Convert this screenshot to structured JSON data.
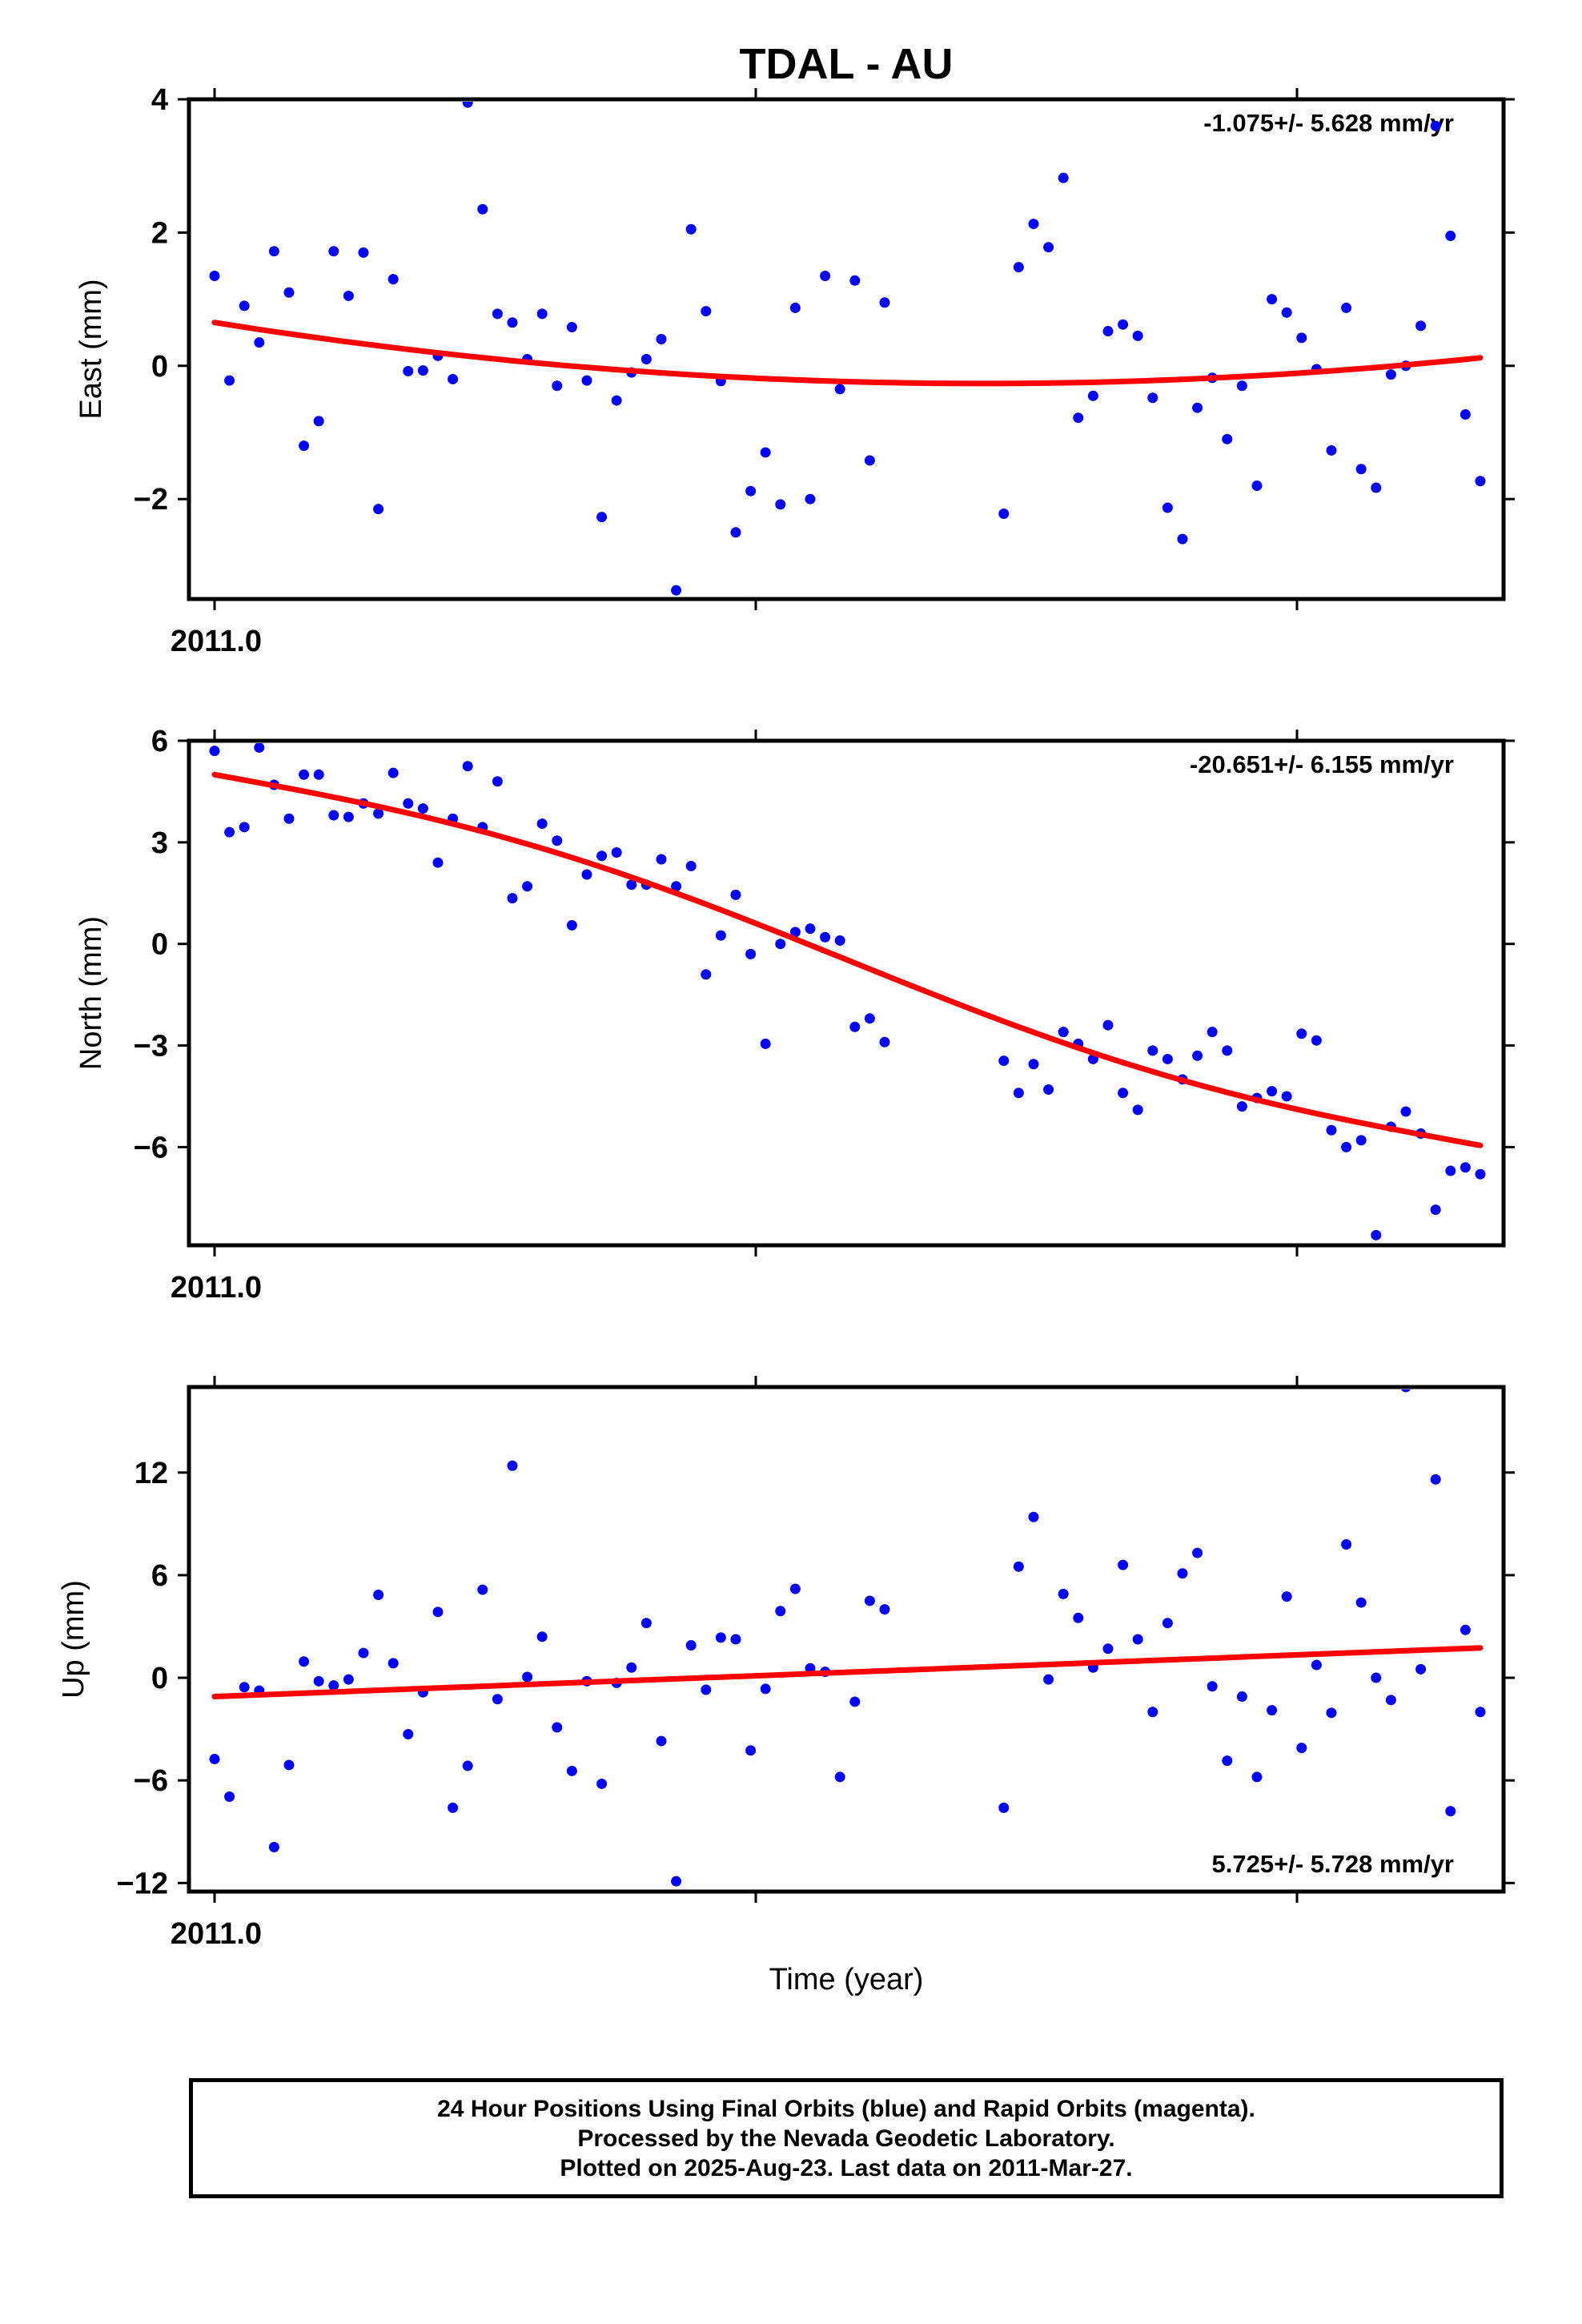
{
  "title": "TDAL - AU",
  "xlabel": "Time (year)",
  "footer": {
    "line1": "24 Hour Positions Using Final Orbits (blue) and Rapid Orbits (magenta).",
    "line2": "Processed by the Nevada Geodetic Laboratory.",
    "line3": "Plotted on 2025-Aug-23. Last data on 2011-Mar-27."
  },
  "colors": {
    "points": "#0000ff",
    "fit": "#ff0000",
    "frame": "#000000"
  },
  "chart_data": [
    {
      "type": "scatter",
      "ylabel": "East (mm)",
      "xtick_label": "2011.0",
      "rate_label": "-1.075+/- 5.628 mm/yr",
      "rate_position": "top-right",
      "ylim": [
        -3.5,
        4.0
      ],
      "yticks": [
        4,
        2,
        0,
        -2
      ],
      "xlim": [
        0,
        86
      ],
      "x": [
        0,
        1,
        2,
        3,
        4,
        5,
        6,
        7,
        8,
        9,
        10,
        11,
        12,
        13,
        14,
        15,
        16,
        17,
        18,
        19,
        20,
        21,
        22,
        23,
        24,
        25,
        26,
        27,
        28,
        29,
        30,
        31,
        32,
        33,
        34,
        35,
        36,
        37,
        38,
        39,
        40,
        41,
        42,
        43,
        44,
        45,
        53,
        54,
        55,
        56,
        57,
        58,
        59,
        60,
        61,
        62,
        63,
        64,
        65,
        66,
        67,
        68,
        69,
        70,
        71,
        72,
        73,
        74,
        75,
        76,
        77,
        78,
        79,
        80,
        81,
        82,
        83,
        84,
        85
      ],
      "y": [
        1.35,
        -0.22,
        0.9,
        0.35,
        1.72,
        1.1,
        -1.2,
        -0.83,
        1.72,
        1.05,
        1.7,
        -2.15,
        1.3,
        -0.08,
        -0.07,
        0.15,
        -0.2,
        3.95,
        2.35,
        0.78,
        0.65,
        0.1,
        0.78,
        -0.3,
        0.58,
        -0.22,
        -2.27,
        -0.52,
        -0.1,
        0.1,
        0.4,
        -3.37,
        2.05,
        0.82,
        -0.23,
        -2.5,
        -1.88,
        -1.3,
        -2.08,
        0.87,
        -2.0,
        1.35,
        -0.35,
        1.28,
        -1.42,
        0.95,
        -2.22,
        1.48,
        2.13,
        1.78,
        2.82,
        -0.78,
        -0.45,
        0.52,
        0.62,
        0.45,
        -0.48,
        -2.13,
        -2.6,
        -0.63,
        -0.18,
        -1.1,
        -0.3,
        -1.8,
        1.0,
        0.8,
        0.42,
        -0.05,
        -1.27,
        0.87,
        -1.55,
        -1.83,
        -0.13,
        0.0,
        0.6,
        3.6,
        1.95,
        -0.73,
        -1.73
      ],
      "fit": {
        "start": 0.65,
        "end": 0.12,
        "min": -0.25
      }
    },
    {
      "type": "scatter",
      "ylabel": "North (mm)",
      "xtick_label": "2011.0",
      "rate_label": "-20.651+/- 6.155 mm/yr",
      "rate_position": "top-right",
      "ylim": [
        -8.9,
        6.0
      ],
      "yticks": [
        6,
        3,
        0,
        -3,
        -6
      ],
      "xlim": [
        0,
        86
      ],
      "x": [
        0,
        1,
        2,
        3,
        4,
        5,
        6,
        7,
        8,
        9,
        10,
        11,
        12,
        13,
        14,
        15,
        16,
        17,
        18,
        19,
        20,
        21,
        22,
        23,
        24,
        25,
        26,
        27,
        28,
        29,
        30,
        31,
        32,
        33,
        34,
        35,
        36,
        37,
        38,
        39,
        40,
        41,
        42,
        43,
        44,
        45,
        53,
        54,
        55,
        56,
        57,
        58,
        59,
        60,
        61,
        62,
        63,
        64,
        65,
        66,
        67,
        68,
        69,
        70,
        71,
        72,
        73,
        74,
        75,
        76,
        77,
        78,
        79,
        80,
        81,
        82,
        83,
        84,
        85
      ],
      "y": [
        5.7,
        3.3,
        3.45,
        5.8,
        4.7,
        3.7,
        5.0,
        5.0,
        3.8,
        3.75,
        4.15,
        3.85,
        5.05,
        4.15,
        4.0,
        2.4,
        3.7,
        5.25,
        3.45,
        4.8,
        1.35,
        1.7,
        3.55,
        3.05,
        0.55,
        2.05,
        2.6,
        2.7,
        1.75,
        1.75,
        2.5,
        1.7,
        2.3,
        -0.9,
        0.25,
        1.45,
        -0.3,
        -2.95,
        0.0,
        0.35,
        0.45,
        0.2,
        0.1,
        -2.45,
        -2.2,
        -2.9,
        -3.45,
        -4.4,
        -3.55,
        -4.3,
        -2.6,
        -2.95,
        -3.4,
        -2.4,
        -4.4,
        -4.9,
        -3.15,
        -3.4,
        -4.0,
        -3.3,
        -2.6,
        -3.15,
        -4.8,
        -4.55,
        -4.35,
        -4.5,
        -2.65,
        -2.85,
        -5.5,
        -6.0,
        -5.8,
        -8.6,
        -5.4,
        -4.95,
        -5.6,
        -7.85,
        -6.7,
        -6.6,
        -6.8
      ],
      "fit": {
        "start": 5.0,
        "end": -5.95
      }
    },
    {
      "type": "scatter",
      "ylabel": "Up (mm)",
      "xtick_label": "2011.0",
      "rate_label": "5.725+/- 5.728 mm/yr",
      "rate_position": "bottom-right",
      "ylim": [
        -12.5,
        17.0
      ],
      "yticks": [
        12,
        6,
        0,
        -6,
        -12
      ],
      "xlim": [
        0,
        86
      ],
      "x": [
        0,
        1,
        2,
        3,
        4,
        5,
        6,
        7,
        8,
        9,
        10,
        11,
        12,
        13,
        14,
        15,
        16,
        17,
        18,
        19,
        20,
        21,
        22,
        23,
        24,
        25,
        26,
        27,
        28,
        29,
        30,
        31,
        32,
        33,
        34,
        35,
        36,
        37,
        38,
        39,
        40,
        41,
        42,
        43,
        44,
        45,
        53,
        54,
        55,
        56,
        57,
        58,
        59,
        60,
        61,
        62,
        63,
        64,
        65,
        66,
        67,
        68,
        69,
        70,
        71,
        72,
        73,
        74,
        75,
        76,
        77,
        78,
        79,
        80,
        81,
        82,
        83,
        84,
        85
      ],
      "y": [
        -4.75,
        -6.95,
        -0.55,
        -0.75,
        -9.9,
        -5.1,
        0.95,
        -0.2,
        -0.45,
        -0.1,
        1.45,
        4.85,
        0.85,
        -3.3,
        -0.85,
        3.85,
        -7.6,
        -5.15,
        5.15,
        -1.25,
        12.4,
        0.05,
        2.4,
        -2.9,
        -5.45,
        -0.2,
        -6.2,
        -0.3,
        0.6,
        3.2,
        -3.7,
        -11.9,
        1.9,
        -0.7,
        2.35,
        2.25,
        -4.25,
        -0.65,
        3.9,
        5.2,
        0.55,
        0.35,
        -5.8,
        -1.4,
        4.5,
        4.0,
        -7.6,
        6.5,
        9.4,
        -0.1,
        4.9,
        3.5,
        0.6,
        1.7,
        6.6,
        2.25,
        -2.0,
        3.2,
        6.1,
        7.3,
        -0.5,
        -4.85,
        -1.1,
        -5.8,
        -1.9,
        4.75,
        -4.1,
        0.75,
        -2.05,
        7.8,
        4.4,
        0.0,
        -1.3,
        17.0,
        0.5,
        11.6,
        -7.8,
        2.8,
        -2.0
      ],
      "fit": {
        "start": -1.1,
        "end": 1.75
      }
    }
  ]
}
